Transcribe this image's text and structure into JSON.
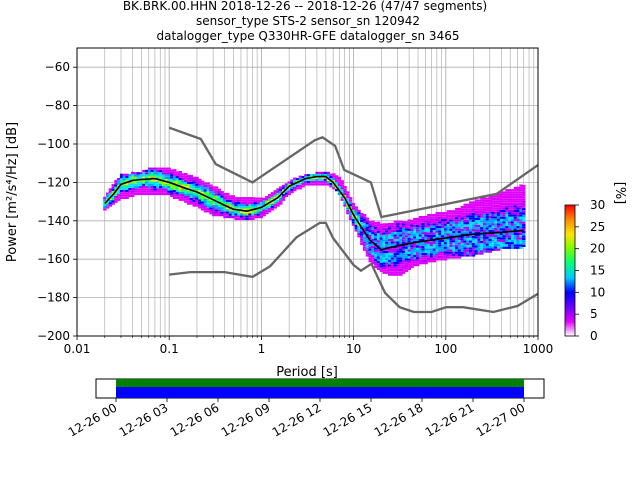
{
  "title": {
    "line1": "BK.BRK.00.HHN   2018-12-26 -- 2018-12-26  (47/47 segments)",
    "line2": "sensor_type STS-2 sensor_sn 120942",
    "line3": "datalogger_type Q330HR-GFE datalogger_sn 3465"
  },
  "colorbar": {
    "label": "[%]",
    "ticks": [
      "0",
      "5",
      "10",
      "15",
      "20",
      "25",
      "30"
    ],
    "range": [
      0,
      30
    ],
    "colors": [
      "#ffffff",
      "#e000ff",
      "#6b00ff",
      "#0000ff",
      "#00c8ff",
      "#00ff7a",
      "#7aff00",
      "#ffe400",
      "#ff8a00",
      "#ff0000"
    ]
  },
  "chart_data": [
    {
      "type": "heatmap",
      "name": "PPSD",
      "xlabel": "Period [s]",
      "ylabel": "Power [m²/s⁴/Hz] [dB]",
      "xscale": "log",
      "xlim": [
        0.01,
        1000
      ],
      "ylim": [
        -200,
        -50
      ],
      "grid": true,
      "xticks": [
        {
          "v": 0.01,
          "label": "0.01"
        },
        {
          "v": 0.1,
          "label": "0.1"
        },
        {
          "v": 1,
          "label": "1"
        },
        {
          "v": 10,
          "label": "10"
        },
        {
          "v": 100,
          "label": "100"
        },
        {
          "v": 1000,
          "label": "1000"
        }
      ],
      "yticks": [
        -60,
        -80,
        -100,
        -120,
        -140,
        -160,
        -180,
        -200
      ],
      "mean_curve": [
        [
          0.02,
          -131
        ],
        [
          0.025,
          -126
        ],
        [
          0.03,
          -121
        ],
        [
          0.04,
          -119
        ],
        [
          0.05,
          -118.5
        ],
        [
          0.07,
          -118
        ],
        [
          0.1,
          -120
        ],
        [
          0.15,
          -123
        ],
        [
          0.2,
          -125
        ],
        [
          0.3,
          -129
        ],
        [
          0.4,
          -132
        ],
        [
          0.5,
          -134
        ],
        [
          0.7,
          -135
        ],
        [
          1,
          -133
        ],
        [
          1.5,
          -128
        ],
        [
          2,
          -122
        ],
        [
          3,
          -118
        ],
        [
          4,
          -117
        ],
        [
          5,
          -117
        ],
        [
          6,
          -120
        ],
        [
          8,
          -128
        ],
        [
          10,
          -137
        ],
        [
          12,
          -143
        ],
        [
          15,
          -150
        ],
        [
          20,
          -155
        ],
        [
          30,
          -153
        ],
        [
          50,
          -151
        ],
        [
          100,
          -149
        ],
        [
          200,
          -147
        ],
        [
          400,
          -146
        ],
        [
          700,
          -145
        ]
      ],
      "noise_models": {
        "high": [
          [
            0.1,
            -91.5
          ],
          [
            0.22,
            -97.4
          ],
          [
            0.32,
            -110.5
          ],
          [
            0.8,
            -120
          ],
          [
            3.8,
            -98
          ],
          [
            4.6,
            -96.5
          ],
          [
            6.3,
            -101
          ],
          [
            7.9,
            -113.5
          ],
          [
            15.4,
            -120
          ],
          [
            20,
            -138
          ],
          [
            354.8,
            -126
          ],
          [
            1000,
            -111
          ]
        ],
        "low": [
          [
            0.1,
            -168
          ],
          [
            0.17,
            -166.7
          ],
          [
            0.4,
            -166.7
          ],
          [
            0.8,
            -169.2
          ],
          [
            1.24,
            -163.7
          ],
          [
            2.4,
            -148.6
          ],
          [
            4.3,
            -141.1
          ],
          [
            5,
            -141.1
          ],
          [
            6,
            -149
          ],
          [
            10,
            -163
          ],
          [
            12,
            -166
          ],
          [
            15.6,
            -162.4
          ],
          [
            21.9,
            -177.5
          ],
          [
            31.6,
            -185
          ],
          [
            45,
            -187.5
          ],
          [
            70,
            -187.5
          ],
          [
            101,
            -185
          ],
          [
            154,
            -185
          ],
          [
            328,
            -187.5
          ],
          [
            600,
            -184.4
          ],
          [
            1000,
            -178
          ]
        ]
      },
      "data_bands": {
        "upper": [
          [
            0.02,
            -127
          ],
          [
            0.03,
            -116
          ],
          [
            0.05,
            -114
          ],
          [
            0.07,
            -112
          ],
          [
            0.1,
            -113
          ],
          [
            0.2,
            -118
          ],
          [
            0.3,
            -122
          ],
          [
            0.5,
            -128
          ],
          [
            1,
            -129
          ],
          [
            1.5,
            -124
          ],
          [
            2,
            -119
          ],
          [
            3,
            -116
          ],
          [
            5,
            -114
          ],
          [
            7,
            -117
          ],
          [
            10,
            -132
          ],
          [
            15,
            -140
          ],
          [
            20,
            -142
          ],
          [
            40,
            -140
          ],
          [
            100,
            -136
          ],
          [
            200,
            -130
          ],
          [
            400,
            -126
          ],
          [
            700,
            -121
          ]
        ],
        "lower": [
          [
            0.02,
            -134
          ],
          [
            0.03,
            -128
          ],
          [
            0.05,
            -125
          ],
          [
            0.1,
            -126
          ],
          [
            0.2,
            -132
          ],
          [
            0.3,
            -136
          ],
          [
            0.5,
            -138
          ],
          [
            0.7,
            -139
          ],
          [
            1,
            -137
          ],
          [
            1.5,
            -132
          ],
          [
            2,
            -125
          ],
          [
            3,
            -121
          ],
          [
            5,
            -120
          ],
          [
            7,
            -125
          ],
          [
            10,
            -142
          ],
          [
            15,
            -160
          ],
          [
            20,
            -166
          ],
          [
            30,
            -168
          ],
          [
            50,
            -162
          ],
          [
            100,
            -159
          ],
          [
            200,
            -157
          ],
          [
            400,
            -154
          ],
          [
            700,
            -153
          ]
        ]
      }
    },
    {
      "type": "timeline",
      "name": "Data coverage",
      "xticks": [
        "12-26 00",
        "12-26 03",
        "12-26 06",
        "12-26 09",
        "12-26 12",
        "12-26 15",
        "12-26 18",
        "12-26 21",
        "12-27 00"
      ],
      "coverage_fraction": [
        0.0,
        1.0
      ],
      "colors": {
        "used": "#008000",
        "data": "#0000ff"
      }
    }
  ]
}
